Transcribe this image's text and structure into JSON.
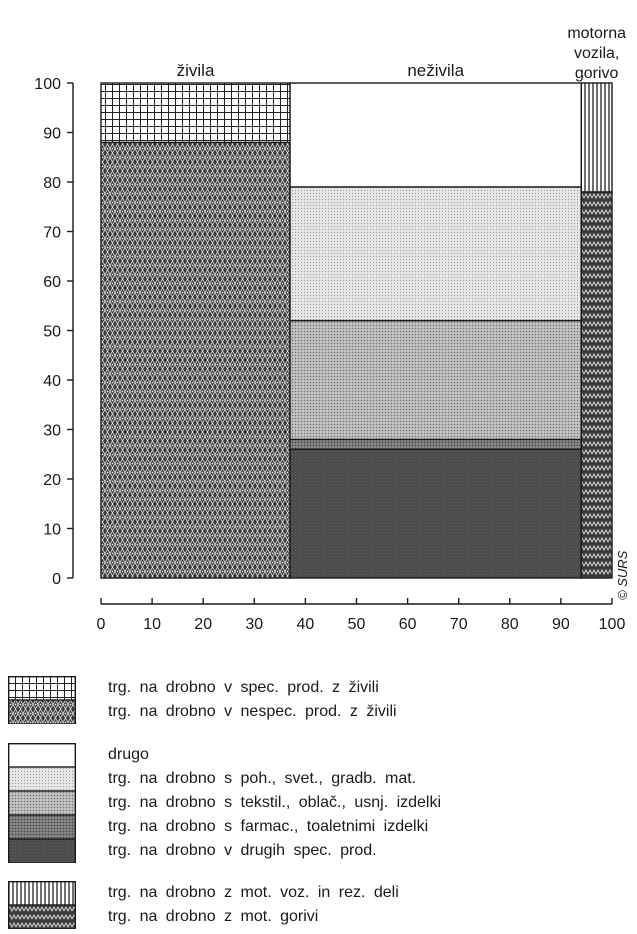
{
  "chart_data": {
    "type": "mosaic",
    "x_ticks": [
      0,
      10,
      20,
      30,
      40,
      50,
      60,
      70,
      80,
      90,
      100
    ],
    "y_ticks": [
      0,
      10,
      20,
      30,
      40,
      50,
      60,
      70,
      80,
      90,
      100
    ],
    "xlim": [
      0,
      100
    ],
    "ylim": [
      0,
      100
    ],
    "columns": [
      {
        "name": "živila",
        "x_start": 0,
        "x_end": 37,
        "segments": [
          {
            "key": "nespec_zivila",
            "from": 0,
            "to": 88
          },
          {
            "key": "spec_zivila",
            "from": 88,
            "to": 100
          }
        ]
      },
      {
        "name": "neživila",
        "x_start": 37,
        "x_end": 94,
        "segments": [
          {
            "key": "drugih_spec",
            "from": 0,
            "to": 26
          },
          {
            "key": "farmac",
            "from": 26,
            "to": 28
          },
          {
            "key": "tekstil",
            "from": 28,
            "to": 52
          },
          {
            "key": "poh_svet",
            "from": 52,
            "to": 79
          },
          {
            "key": "drugo",
            "from": 79,
            "to": 100
          }
        ]
      },
      {
        "name": "motorna vozila, gorivo",
        "name_lines": [
          "motorna",
          "vozila,",
          "gorivo"
        ],
        "x_start": 94,
        "x_end": 100,
        "segments": [
          {
            "key": "mot_gorivi",
            "from": 0,
            "to": 78
          },
          {
            "key": "mot_voz",
            "from": 78,
            "to": 100
          }
        ]
      }
    ],
    "credit": "© SURS",
    "legend_groups": [
      [
        {
          "key": "spec_zivila",
          "pattern": "grid",
          "label": "trg. na drobno v spec. prod. z živili"
        },
        {
          "key": "nespec_zivila",
          "pattern": "stars",
          "label": "trg. na drobno v nespec. prod. z živili"
        }
      ],
      [
        {
          "key": "drugo",
          "pattern": "white",
          "label": "drugo"
        },
        {
          "key": "poh_svet",
          "pattern": "light-dots",
          "label": "trg. na drobno s poh., svet., gradb. mat."
        },
        {
          "key": "tekstil",
          "pattern": "medium-dots",
          "label": "trg. na drobno s tekstil., oblač., usnj. izdelki"
        },
        {
          "key": "farmac",
          "pattern": "dark-dots",
          "label": "trg. na drobno s farmac., toaletnimi izdelki"
        },
        {
          "key": "drugih_spec",
          "pattern": "dark",
          "label": "trg. na drobno v drugih spec. prod."
        }
      ],
      [
        {
          "key": "mot_voz",
          "pattern": "vlines",
          "label": "trg. na drobno z mot. voz. in rez. deli"
        },
        {
          "key": "mot_gorivi",
          "pattern": "zigzag",
          "label": "trg. na drobno z mot. gorivi"
        }
      ]
    ]
  }
}
